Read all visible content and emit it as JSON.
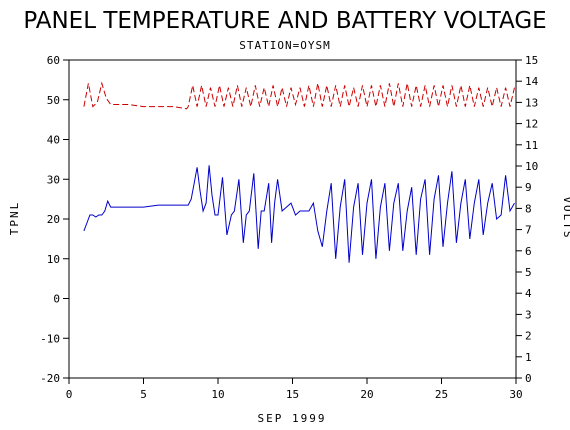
{
  "chart_data": {
    "type": "line",
    "title": "PANEL TEMPERATURE AND BATTERY VOLTAGE",
    "subtitle": "STATION=OYSM",
    "xlabel": "SEP 1999",
    "ylabel": "TPNL",
    "y2label": "VOLTS",
    "xlim": [
      0,
      30
    ],
    "ylim": [
      -20,
      60
    ],
    "y2lim": [
      0,
      15
    ],
    "x_ticks": [
      0,
      5,
      10,
      15,
      20,
      25,
      30
    ],
    "y_ticks": [
      -20,
      -10,
      0,
      10,
      20,
      30,
      40,
      50,
      60
    ],
    "y2_ticks": [
      0,
      1,
      2,
      3,
      4,
      5,
      6,
      7,
      8,
      9,
      10,
      11,
      12,
      13,
      14,
      15
    ],
    "grid": false,
    "colors": {
      "temperature": "#0000cc",
      "voltage": "#cc0000",
      "axes": "#000000"
    },
    "series": [
      {
        "name": "",
        "axis": "left",
        "style": "solid",
        "x": [
          1.0,
          1.2,
          1.4,
          1.6,
          1.8,
          2.0,
          2.2,
          2.4,
          2.6,
          2.8,
          3.0,
          4.0,
          5.0,
          6.0,
          7.0,
          8.0,
          8.2,
          8.4,
          8.6,
          8.8,
          9.0,
          9.2,
          9.4,
          9.6,
          9.8,
          10.0,
          10.3,
          10.6,
          10.9,
          11.1,
          11.4,
          11.7,
          11.9,
          12.1,
          12.4,
          12.7,
          12.9,
          13.1,
          13.4,
          13.6,
          13.8,
          14.0,
          14.3,
          14.6,
          14.9,
          15.2,
          15.5,
          15.8,
          16.1,
          16.4,
          16.7,
          17.0,
          17.3,
          17.6,
          17.9,
          18.2,
          18.5,
          18.8,
          19.1,
          19.4,
          19.7,
          20.0,
          20.3,
          20.6,
          20.9,
          21.2,
          21.5,
          21.8,
          22.1,
          22.4,
          22.7,
          23.0,
          23.3,
          23.6,
          23.9,
          24.2,
          24.5,
          24.8,
          25.1,
          25.4,
          25.7,
          26.0,
          26.3,
          26.6,
          26.9,
          27.2,
          27.5,
          27.8,
          28.1,
          28.4,
          28.7,
          29.0,
          29.3,
          29.6,
          29.9
        ],
        "values": [
          17,
          19,
          21,
          21,
          20.5,
          21,
          21,
          22,
          24.5,
          23,
          23,
          23,
          23,
          23.5,
          23.5,
          23.5,
          25,
          29,
          33,
          27,
          22,
          24,
          33.5,
          26,
          21,
          21,
          30.5,
          16,
          21,
          22,
          30,
          14,
          21,
          22,
          31.5,
          12.5,
          22,
          22,
          29,
          14,
          24,
          30,
          22,
          23,
          24,
          21,
          22,
          22,
          22,
          24,
          17,
          13,
          22,
          29,
          10,
          23,
          30,
          9,
          23,
          29,
          11,
          24,
          30,
          10,
          23,
          29,
          12,
          24,
          29,
          12,
          22,
          28,
          11,
          25,
          30,
          11,
          25,
          31,
          13,
          24,
          32,
          14,
          24,
          30,
          15,
          24,
          30,
          16,
          24,
          29,
          20,
          21,
          31,
          22,
          24
        ]
      },
      {
        "name": "",
        "axis": "right",
        "style": "dashed",
        "x": [
          1.0,
          1.3,
          1.6,
          1.9,
          2.2,
          2.5,
          2.8,
          3.0,
          4.0,
          5.0,
          6.0,
          7.0,
          7.9,
          8.0,
          8.3,
          8.6,
          8.9,
          9.2,
          9.5,
          9.8,
          10.1,
          10.4,
          10.7,
          11.0,
          11.3,
          11.6,
          11.9,
          12.2,
          12.5,
          12.8,
          13.1,
          13.4,
          13.7,
          14.0,
          14.3,
          14.6,
          14.9,
          15.2,
          15.5,
          15.8,
          16.1,
          16.4,
          16.7,
          17.0,
          17.3,
          17.6,
          17.9,
          18.2,
          18.5,
          18.8,
          19.1,
          19.4,
          19.7,
          20.0,
          20.3,
          20.6,
          20.9,
          21.2,
          21.5,
          21.8,
          22.1,
          22.4,
          22.7,
          23.0,
          23.3,
          23.6,
          23.9,
          24.2,
          24.5,
          24.8,
          25.1,
          25.4,
          25.7,
          26.0,
          26.3,
          26.6,
          26.9,
          27.2,
          27.5,
          27.8,
          28.1,
          28.4,
          28.7,
          29.0,
          29.3,
          29.6,
          29.9
        ],
        "values": [
          12.8,
          13.9,
          12.8,
          13.0,
          13.9,
          13.2,
          12.9,
          12.9,
          12.9,
          12.8,
          12.8,
          12.8,
          12.7,
          12.8,
          13.8,
          12.8,
          13.8,
          12.8,
          13.7,
          12.8,
          13.8,
          12.8,
          13.7,
          12.8,
          13.8,
          12.8,
          13.7,
          12.8,
          13.8,
          12.8,
          13.7,
          12.8,
          13.8,
          12.8,
          13.7,
          12.8,
          13.7,
          12.9,
          13.7,
          12.8,
          13.8,
          12.8,
          13.9,
          12.8,
          13.8,
          12.8,
          13.8,
          12.8,
          13.8,
          12.8,
          13.7,
          12.8,
          13.8,
          12.8,
          13.8,
          12.8,
          13.8,
          12.8,
          13.9,
          12.8,
          13.9,
          12.8,
          13.9,
          12.8,
          13.8,
          12.8,
          13.8,
          12.8,
          13.8,
          12.8,
          13.8,
          12.8,
          13.8,
          12.8,
          13.8,
          12.8,
          13.8,
          12.8,
          13.7,
          12.8,
          13.7,
          12.8,
          13.7,
          12.8,
          13.7,
          12.8,
          13.7
        ]
      }
    ]
  }
}
